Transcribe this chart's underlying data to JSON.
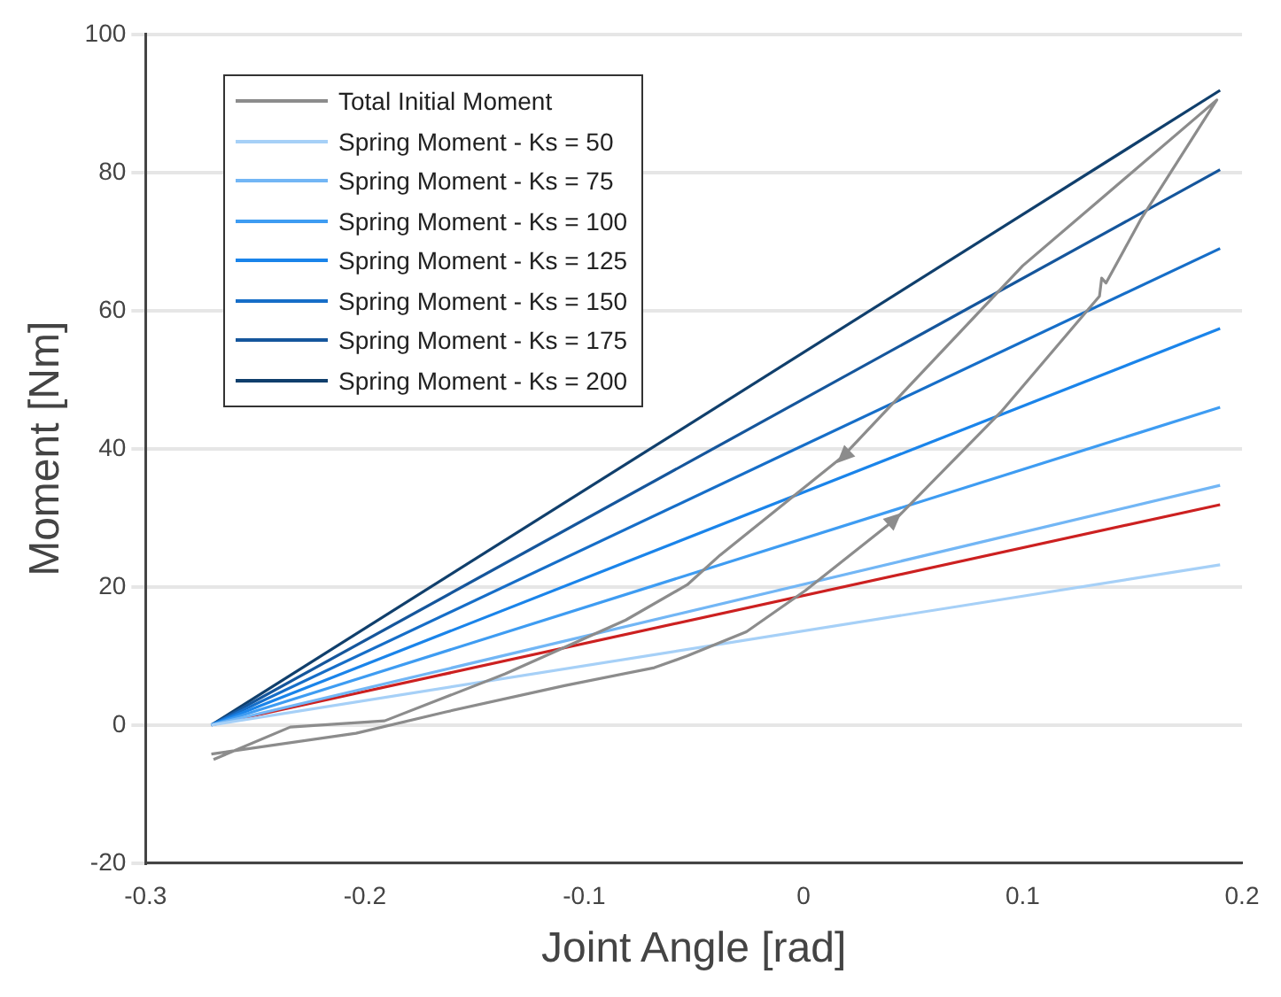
{
  "chart_data": {
    "type": "line",
    "xlabel": "Joint Angle [rad]",
    "ylabel": "Moment [Nm]",
    "xlim": [
      -0.3,
      0.2
    ],
    "xticks": [
      -0.3,
      -0.2,
      -0.1,
      0,
      0.1,
      0.2
    ],
    "ylim": [
      -20,
      100
    ],
    "yticks": [
      -20,
      0,
      20,
      40,
      60,
      80,
      100
    ],
    "grid": "y",
    "legend": "top left",
    "marker": "none",
    "line_style": "solid",
    "series": [
      {
        "name": "Total Initial Moment",
        "color": "#8c8c8c",
        "x": [
          -0.27,
          -0.204,
          -0.163,
          -0.109,
          -0.068,
          -0.053,
          -0.026,
          0.001,
          0.042,
          0.09,
          0.135,
          0.136,
          0.138,
          0.154,
          0.1885,
          0.138,
          0.1,
          0.018,
          -0.038,
          -0.053,
          -0.081,
          -0.136,
          -0.191,
          -0.234,
          -0.269
        ],
        "values": [
          -4.2,
          -1.2,
          1.9,
          5.7,
          8.3,
          10,
          13.5,
          19.5,
          29.8,
          45.3,
          62.1,
          64.7,
          64,
          73.3,
          90.5,
          76.8,
          66.5,
          38.9,
          24.6,
          20.3,
          15.2,
          7.4,
          0.6,
          -0.3,
          -5
        ]
      },
      {
        "name": "Spring Moment - Ks = 50",
        "color": "#a6d0f7",
        "x": [
          -0.27,
          0.19
        ],
        "values": [
          0,
          23.2
        ]
      },
      {
        "name": "Spring Moment - Ks = 75",
        "color": "#72b6f5",
        "x": [
          -0.27,
          0.19
        ],
        "values": [
          0,
          34.7
        ]
      },
      {
        "name": "Spring Moment - Ks = 100",
        "color": "#3e9cf2",
        "x": [
          -0.27,
          0.19
        ],
        "values": [
          0,
          46
        ]
      },
      {
        "name": "Spring Moment - Ks = 125",
        "color": "#1a84ea",
        "x": [
          -0.27,
          0.19
        ],
        "values": [
          0,
          57.4
        ]
      },
      {
        "name": "Spring Moment - Ks = 150",
        "color": "#166ec8",
        "x": [
          -0.27,
          0.19
        ],
        "values": [
          0,
          69
        ]
      },
      {
        "name": "Spring Moment - Ks = 175",
        "color": "#15569c",
        "x": [
          -0.27,
          0.19
        ],
        "values": [
          0,
          80.4
        ]
      },
      {
        "name": "Spring Moment - Ks = 200",
        "color": "#103f6c",
        "x": [
          -0.27,
          0.19
        ],
        "values": [
          0,
          91.9
        ]
      },
      {
        "color": "#cc2020",
        "x": [
          -0.27,
          0.19
        ],
        "values": [
          0,
          31.9
        ]
      }
    ]
  }
}
